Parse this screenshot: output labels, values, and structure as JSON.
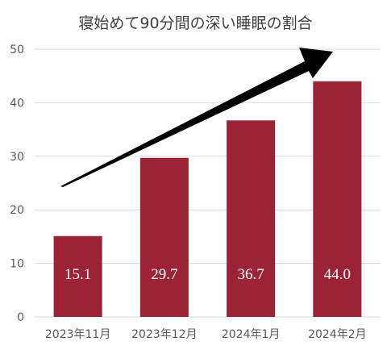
{
  "chart_data": {
    "type": "bar",
    "title": "寝始めて90分間の深い睡眠の割合",
    "categories": [
      "2023年11月",
      "2023年12月",
      "2024年1月",
      "2024年2月"
    ],
    "values": [
      15.1,
      29.7,
      36.7,
      44.0
    ],
    "data_labels": [
      "15.1",
      "29.7",
      "36.7",
      "44.0"
    ],
    "ylim": [
      0,
      50
    ],
    "yticks": [
      0,
      10,
      20,
      30,
      40,
      50
    ],
    "grid": true,
    "bar_color": "#9b2335",
    "gridline_color": "#d9d9d9",
    "annotation": "upward-trend-arrow"
  }
}
